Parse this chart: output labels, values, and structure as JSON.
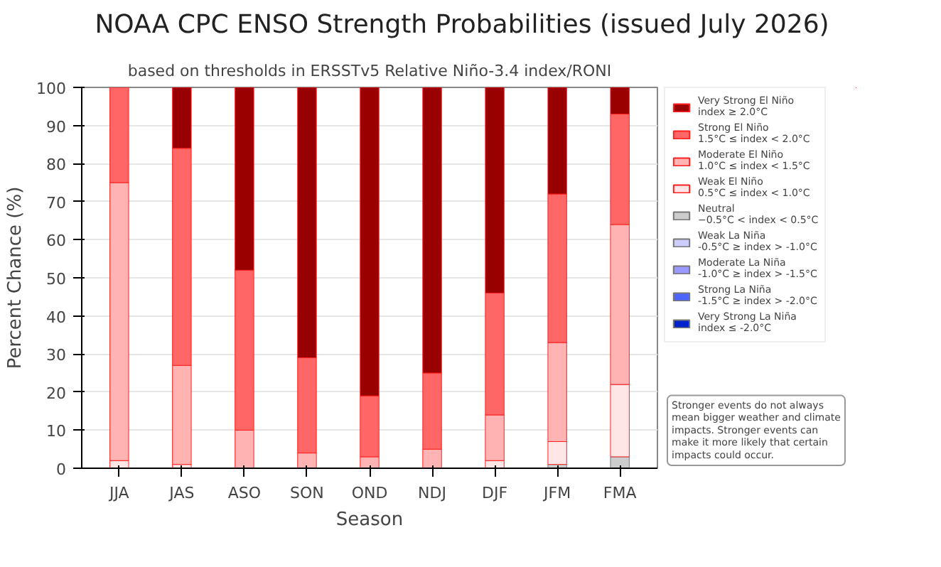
{
  "chart_data": {
    "type": "bar",
    "title": "NOAA CPC ENSO Strength Probabilities (issued July 2026)",
    "subtitle": "based on thresholds in ERSSTv5 Relative Niño-3.4 index/RONI",
    "xlabel": "Season",
    "ylabel": "Percent Chance (%)",
    "categories": [
      "JJA",
      "JAS",
      "ASO",
      "SON",
      "OND",
      "NDJ",
      "DJF",
      "JFM",
      "FMA"
    ],
    "stacked": true,
    "ylim": [
      0,
      100
    ],
    "yticks": [
      0,
      10,
      20,
      30,
      40,
      50,
      60,
      70,
      80,
      90,
      100
    ],
    "grid": "y",
    "legend": "right",
    "series": [
      {
        "name": "Very Strong La Niña\nindex ≤ -2.0°C",
        "color": "#0022cc",
        "values": [
          0,
          0,
          0,
          0,
          0,
          0,
          0,
          0,
          0
        ]
      },
      {
        "name": "Strong La Niña\n-1.5°C ≥ index > -2.0°C",
        "color": "#4d66ff",
        "values": [
          0,
          0,
          0,
          0,
          0,
          0,
          0,
          0,
          0
        ]
      },
      {
        "name": "Moderate La Niña\n-1.0°C ≥ index > -1.5°C",
        "color": "#9999ff",
        "values": [
          0,
          0,
          0,
          0,
          0,
          0,
          0,
          0,
          0
        ]
      },
      {
        "name": "Weak La Niña\n-0.5°C ≥ index > -1.0°C",
        "color": "#ccccff",
        "values": [
          0,
          0,
          0,
          0,
          0,
          0,
          0,
          0,
          0
        ]
      },
      {
        "name": "Neutral\n−0.5°C < index < 0.5°C",
        "color": "#cccccc",
        "values": [
          0,
          0,
          0,
          0,
          0,
          0,
          0,
          1,
          3
        ]
      },
      {
        "name": "Weak El Niño\n0.5°C ≤ index < 1.0°C",
        "color": "#ffe6e6",
        "values": [
          2,
          1,
          0,
          0,
          0,
          0,
          2,
          6,
          19
        ]
      },
      {
        "name": "Moderate El Niño\n1.0°C ≤ index < 1.5°C",
        "color": "#ffb3b3",
        "values": [
          73,
          26,
          10,
          4,
          3,
          5,
          12,
          26,
          42
        ]
      },
      {
        "name": "Strong El Niño\n1.5°C ≤ index < 2.0°C",
        "color": "#ff6666",
        "values": [
          25,
          57,
          42,
          25,
          16,
          20,
          32,
          39,
          29
        ]
      },
      {
        "name": "Very Strong El Niño\nindex ≥ 2.0°C",
        "color": "#990000",
        "values": [
          0,
          16,
          48,
          71,
          81,
          75,
          54,
          28,
          7
        ]
      }
    ],
    "annotations": [
      "Stronger events do not always\nmean bigger weather and climate\nimpacts. Stronger events can\nmake it more likely that certain\nimpacts could occur."
    ]
  }
}
